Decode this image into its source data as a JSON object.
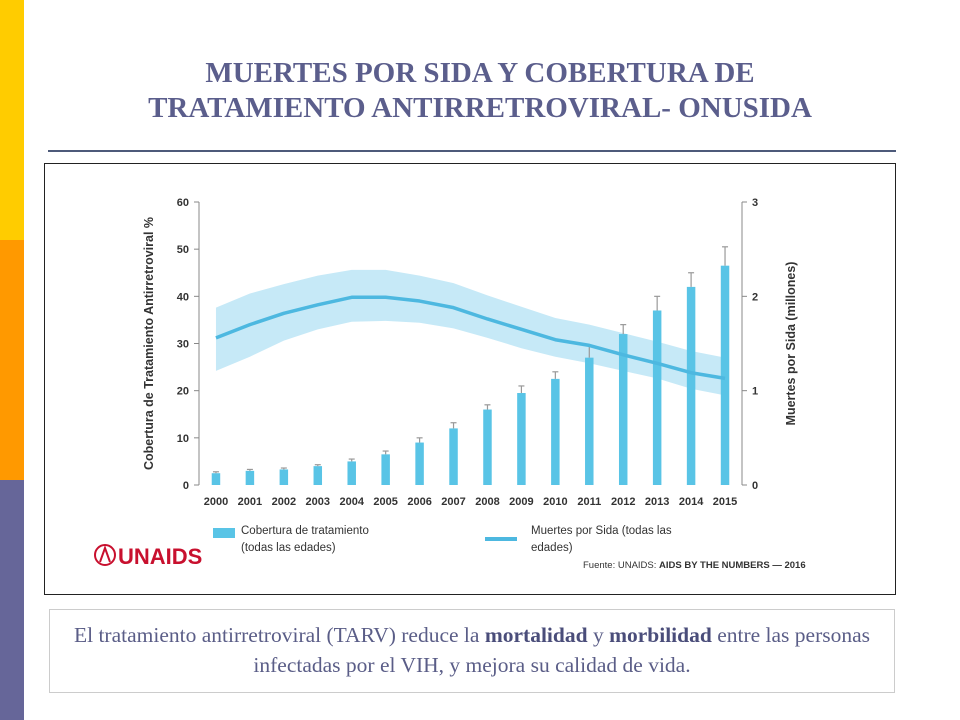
{
  "slide": {
    "title_line1": "MUERTES POR SIDA Y COBERTURA DE",
    "title_line2": "TRATAMIENTO ANTIRRETROVIRAL- ONUSIDA",
    "caption_part1": "El tratamiento antirretroviral (TARV) reduce la ",
    "caption_bold1": "mortalidad",
    "caption_part2": " y ",
    "caption_bold2": "morbilidad",
    "caption_part3": " entre las personas infectadas por el VIH, y mejora su calidad de vida.",
    "colors": {
      "stripe_top": "#ffcc00",
      "stripe_mid": "#ff9900",
      "stripe_bottom": "#666699",
      "title": "#5b5e8c"
    }
  },
  "chart_data": {
    "type": "bar",
    "categories": [
      "2000",
      "2001",
      "2002",
      "2003",
      "2004",
      "2005",
      "2006",
      "2007",
      "2008",
      "2009",
      "2010",
      "2011",
      "2012",
      "2013",
      "2014",
      "2015"
    ],
    "ylabel": "Cobertura de Tratamiento Antirretroviral %",
    "y2label": "Muertes por Sida (millones)",
    "ylim": [
      0,
      60
    ],
    "y2lim": [
      0,
      3
    ],
    "yticks": [
      "0",
      "10",
      "20",
      "30",
      "40",
      "50",
      "60"
    ],
    "y2ticks": [
      "0",
      "1",
      "2",
      "3"
    ],
    "series": [
      {
        "name": "Cobertura de tratamiento (todas las edades)",
        "axis": "left",
        "kind": "bar",
        "color": "#59c4e6",
        "values": [
          2.5,
          3,
          3.3,
          4,
          5,
          6.5,
          9,
          12,
          16,
          19.5,
          22.5,
          27,
          32,
          37,
          42,
          46.5
        ],
        "err_hi": [
          2.8,
          3.3,
          3.6,
          4.3,
          5.5,
          7.2,
          10,
          13.2,
          17,
          21,
          24,
          29.5,
          34,
          40,
          45,
          50.5
        ]
      },
      {
        "name": "Muertes por Sida (todas las edades)",
        "axis": "right",
        "kind": "line",
        "color": "#4db8e0",
        "band_color": "#c6e9f7",
        "values": [
          1.56,
          1.7,
          1.82,
          1.91,
          1.99,
          1.99,
          1.95,
          1.88,
          1.76,
          1.65,
          1.54,
          1.48,
          1.38,
          1.29,
          1.19,
          1.13
        ],
        "band_low": [
          1.21,
          1.36,
          1.53,
          1.65,
          1.73,
          1.74,
          1.72,
          1.66,
          1.56,
          1.45,
          1.36,
          1.29,
          1.21,
          1.13,
          1.02,
          0.95
        ],
        "band_high": [
          1.88,
          2.03,
          2.13,
          2.22,
          2.28,
          2.28,
          2.22,
          2.14,
          2.01,
          1.89,
          1.77,
          1.7,
          1.61,
          1.52,
          1.42,
          1.35
        ]
      }
    ],
    "legend": [
      "Cobertura de tratamiento",
      "(todas las edades)",
      "Muertes por Sida (todas las",
      "edades)"
    ],
    "logo_text": "UNAIDS",
    "source_label": "Fuente: UNAIDS:",
    "source_bold": "AIDS BY THE NUMBERS — 2016"
  }
}
